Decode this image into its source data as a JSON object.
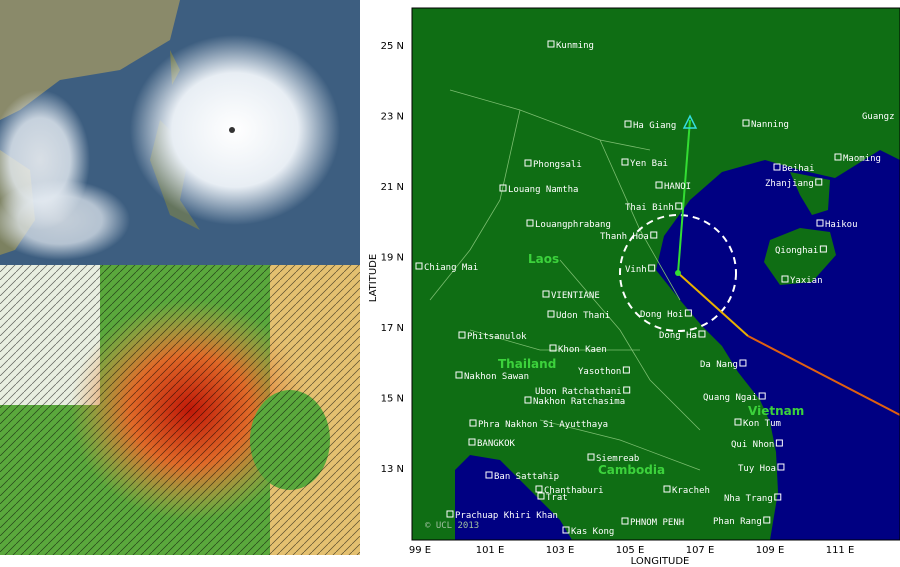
{
  "map": {
    "lat_ticks": [
      "25 N",
      "23 N",
      "21 N",
      "19 N",
      "17 N",
      "15 N",
      "13 N"
    ],
    "lon_ticks": [
      "99 E",
      "101 E",
      "103 E",
      "105 E",
      "107 E",
      "109 E",
      "111 E"
    ],
    "x_label": "LONGITUDE",
    "y_label": "LATITUDE",
    "copyright": "© UCL 2013",
    "countries": [
      "Laos",
      "Thailand",
      "Vietnam",
      "Cambodia"
    ],
    "cities": [
      "Kunming",
      "Ha Giang",
      "Nanning",
      "Guangz",
      "Phongsali",
      "Yen Bai",
      "Beihai",
      "Maoming",
      "Louang Namtha",
      "HANOI",
      "Zhanjiang",
      "Thai Binh",
      "Louangphrabang",
      "Thanh Hoa",
      "Haikou",
      "Qionghai",
      "Chiang Mai",
      "Vinh",
      "Yaxian",
      "VIENTIANE",
      "Udon Thani",
      "Dong Hoi",
      "Phitsanulok",
      "Dong Ha",
      "Khon Kaen",
      "Nakhon Sawan",
      "Yasothon",
      "Da Nang",
      "Ubon Ratchathani",
      "Nakhon Ratchasima",
      "Quang Ngai",
      "Kon Tum",
      "Phra Nakhon Si Ayutthaya",
      "Qui Nhon",
      "BANGKOK",
      "Siemreab",
      "Tuy Hoa",
      "Ban Sattahip",
      "Chanthaburi",
      "Kracheh",
      "Trat",
      "Nha Trang",
      "Prachuap Khiri Khan",
      "PHNOM PENH",
      "Phan Rang",
      "Kas Kong"
    ]
  }
}
